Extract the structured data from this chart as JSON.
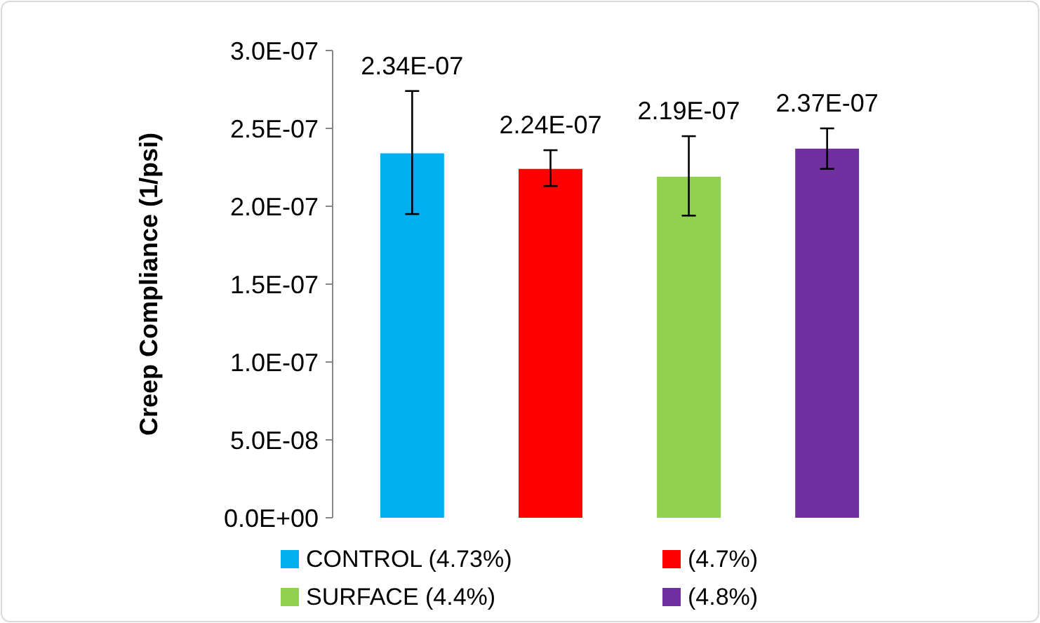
{
  "chart_data": {
    "type": "bar",
    "ylabel": "Creep Compliance (1/psi)",
    "categories": [
      null,
      null,
      null,
      null
    ],
    "stacked": true,
    "series": [
      {
        "name": "CONTROL (4.73%)",
        "color": "#00b0f0",
        "values": [
          2.34e-07,
          null,
          null,
          null
        ],
        "errors": [
          [
            1.95e-07,
            2.74e-07
          ],
          null,
          null,
          null
        ],
        "value_labels": [
          "2.34E-07",
          null,
          null,
          null
        ]
      },
      {
        "name": "(4.7%)",
        "color": "#ff0000",
        "values": [
          null,
          2.24e-07,
          null,
          null
        ],
        "errors": [
          null,
          [
            2.13e-07,
            2.36e-07
          ],
          null,
          null
        ],
        "value_labels": [
          null,
          "2.24E-07",
          null,
          null
        ]
      },
      {
        "name": "SURFACE (4.4%)",
        "color": "#92d050",
        "values": [
          null,
          null,
          2.19e-07,
          null
        ],
        "errors": [
          null,
          null,
          [
            1.94e-07,
            2.45e-07
          ],
          null
        ],
        "value_labels": [
          null,
          null,
          "2.19E-07",
          null
        ]
      },
      {
        "name": "(4.8%)",
        "color": "#7030a0",
        "values": [
          null,
          null,
          null,
          2.37e-07
        ],
        "errors": [
          null,
          null,
          null,
          [
            2.24e-07,
            2.5e-07
          ]
        ],
        "value_labels": [
          null,
          null,
          null,
          "2.37E-07"
        ]
      }
    ],
    "ylim": [
      0,
      3e-07
    ],
    "yticks": [
      {
        "value": 0,
        "label": "0.0E+00"
      },
      {
        "value": 5e-08,
        "label": "5.0E-08"
      },
      {
        "value": 1e-07,
        "label": "1.0E-07"
      },
      {
        "value": 1.5e-07,
        "label": "1.5E-07"
      },
      {
        "value": 2e-07,
        "label": "2.0E-07"
      },
      {
        "value": 2.5e-07,
        "label": "2.5E-07"
      },
      {
        "value": 3e-07,
        "label": "3.0E-07"
      }
    ],
    "grid": false,
    "legend": "bottom"
  }
}
